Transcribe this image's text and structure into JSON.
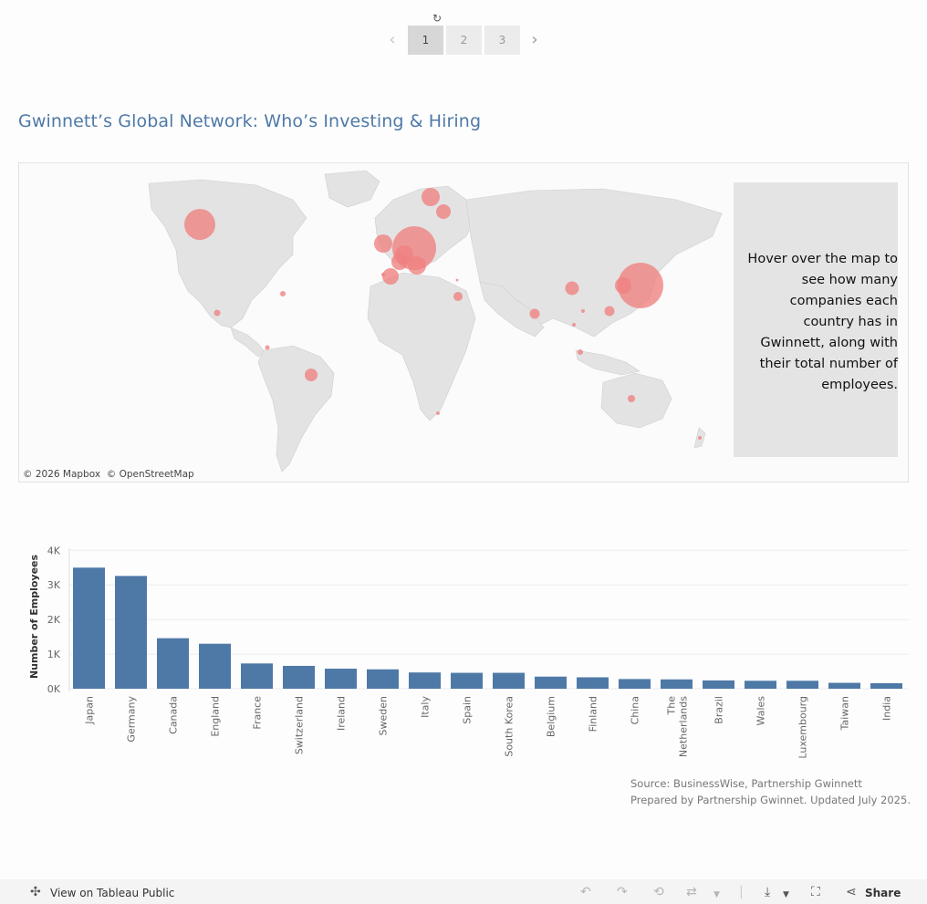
{
  "pager": {
    "refresh_icon": "refresh-icon",
    "pages": [
      "1",
      "2",
      "3"
    ],
    "active_page": "1"
  },
  "title": "Gwinnett’s Global Network: Who’s Investing & Hiring",
  "map": {
    "hover_text": "Hover over the map to see how many companies each country has in Gwinnett, along with their total number of employees.",
    "attribution_mapbox": "© 2026 Mapbox",
    "attribution_osm": "© OpenStreetMap",
    "bubble_color": "#f08080"
  },
  "chart_data": {
    "type": "bar",
    "categories": [
      "Japan",
      "Germany",
      "Canada",
      "England",
      "France",
      "Switzerland",
      "Ireland",
      "Sweden",
      "Italy",
      "Spain",
      "South Korea",
      "Belgium",
      "Finland",
      "China",
      "The Netherlands",
      "Brazil",
      "Wales",
      "Luxembourg",
      "Taiwan",
      "India"
    ],
    "values": [
      3500,
      3260,
      1460,
      1300,
      730,
      660,
      580,
      560,
      470,
      460,
      460,
      350,
      330,
      280,
      270,
      240,
      230,
      230,
      170,
      160
    ],
    "ylabel": "Number of Employees",
    "yticks": [
      "0K",
      "1K",
      "2K",
      "3K",
      "4K"
    ],
    "ylim": [
      0,
      4000
    ],
    "color": "#4e79a7"
  },
  "source": {
    "line1": "Source: BusinessWise, Partnership Gwinnett",
    "line2": "Prepared by Partnership Gwinnet. Updated July 2025."
  },
  "footer": {
    "view_label": "View on Tableau Public",
    "share_label": "Share"
  }
}
